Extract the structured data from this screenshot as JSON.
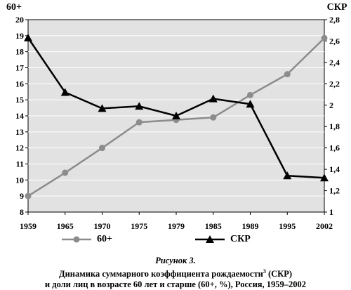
{
  "chart_data": {
    "type": "line",
    "left_axis_label": "60+",
    "right_axis_label": "СКР",
    "categories": [
      "1959",
      "1965",
      "1970",
      "1975",
      "1979",
      "1985",
      "1989",
      "1995",
      "2002"
    ],
    "left_ylim": [
      8,
      20
    ],
    "left_yticks": [
      "8",
      "9",
      "10",
      "11",
      "12",
      "13",
      "14",
      "15",
      "16",
      "17",
      "18",
      "19",
      "20"
    ],
    "right_ylim": [
      1,
      2.8
    ],
    "right_yticks": [
      "1",
      "1,2",
      "1,4",
      "1,6",
      "1,8",
      "2",
      "2,2",
      "2,4",
      "2,6",
      "2,8"
    ],
    "grid": true,
    "legend_position": "bottom",
    "series": [
      {
        "name": "60+",
        "axis": "left",
        "marker": "circle",
        "color": "#8c8c8c",
        "values": [
          9.0,
          10.45,
          12.0,
          13.6,
          13.75,
          13.9,
          15.3,
          16.6,
          18.85
        ]
      },
      {
        "name": "СКР",
        "axis": "right",
        "marker": "triangle",
        "color": "#000000",
        "values": [
          2.63,
          2.12,
          1.97,
          1.99,
          1.9,
          2.06,
          2.01,
          1.34,
          1.32
        ]
      }
    ]
  },
  "caption": {
    "figure": "Рисунок 3.",
    "line1": "Динамика суммарного коэффициента рождаемости",
    "footnote_mark": "3",
    "line1_end": " (СКР)",
    "line2": "и доли лиц в возрасте 60 лет и старше (60+, %), Россия, 1959–2002"
  }
}
